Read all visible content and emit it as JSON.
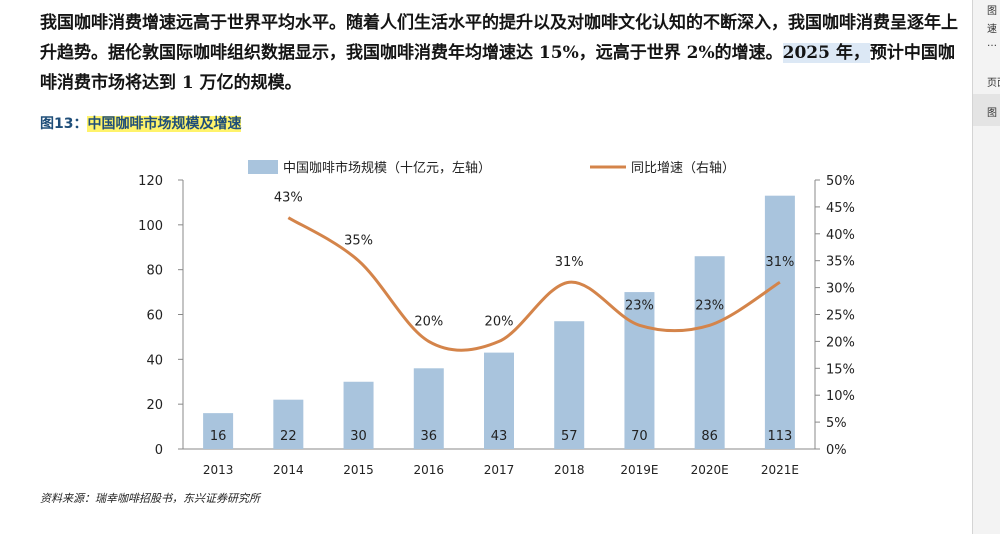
{
  "paragraph": {
    "bold_lead": "我国咖啡消费增速远高于世界平均水平。",
    "body_1": "随着人们生活水平的提升以及对咖啡文化认知的不断深入，我国咖啡消费呈逐年上升趋势。据伦敦国际咖啡组织数据显示，我国咖啡消费年均增速达 15%，远高于世界 2%的增速。",
    "highlight": "2025 年，",
    "body_2": "预计中国咖啡消费市场将达到 1 万亿的规模。"
  },
  "figure": {
    "label": "图13：",
    "name": "中国咖啡市场规模及增速"
  },
  "source": "资料来源：瑞幸咖啡招股书，东兴证券研究所",
  "side_panel": {
    "line1": "图",
    "line2": "速",
    "line3": "…",
    "line4": "页面",
    "line5": "图"
  },
  "chart_data": {
    "type": "bar",
    "title": "中国咖啡市场规模及增速",
    "categories": [
      "2013",
      "2014",
      "2015",
      "2016",
      "2017",
      "2018",
      "2019E",
      "2020E",
      "2021E"
    ],
    "series": [
      {
        "name": "中国咖啡市场规模（十亿元，左轴）",
        "type": "bar",
        "axis": "left",
        "color": "#a9c4dd",
        "values": [
          16,
          22,
          30,
          36,
          43,
          57,
          70,
          86,
          113
        ],
        "labels": [
          "16",
          "22",
          "30",
          "36",
          "43",
          "57",
          "70",
          "86",
          "113"
        ]
      },
      {
        "name": "同比增速（右轴）",
        "type": "line",
        "axis": "right",
        "color": "#d4844a",
        "x": [
          "2014",
          "2015",
          "2016",
          "2017",
          "2018",
          "2019E",
          "2020E",
          "2021E"
        ],
        "values": [
          43,
          35,
          20,
          20,
          31,
          23,
          23,
          31
        ],
        "labels": [
          "43%",
          "35%",
          "20%",
          "20%",
          "31%",
          "23%",
          "23%",
          "31%"
        ]
      }
    ],
    "y_left": {
      "min": 0,
      "max": 120,
      "ticks": [
        "0",
        "20",
        "40",
        "60",
        "80",
        "100",
        "120"
      ]
    },
    "y_right": {
      "min": 0,
      "max": 50,
      "ticks": [
        "0%",
        "5%",
        "10%",
        "15%",
        "20%",
        "25%",
        "30%",
        "35%",
        "40%",
        "45%",
        "50%"
      ]
    },
    "legend_position": "top",
    "grid": false
  }
}
